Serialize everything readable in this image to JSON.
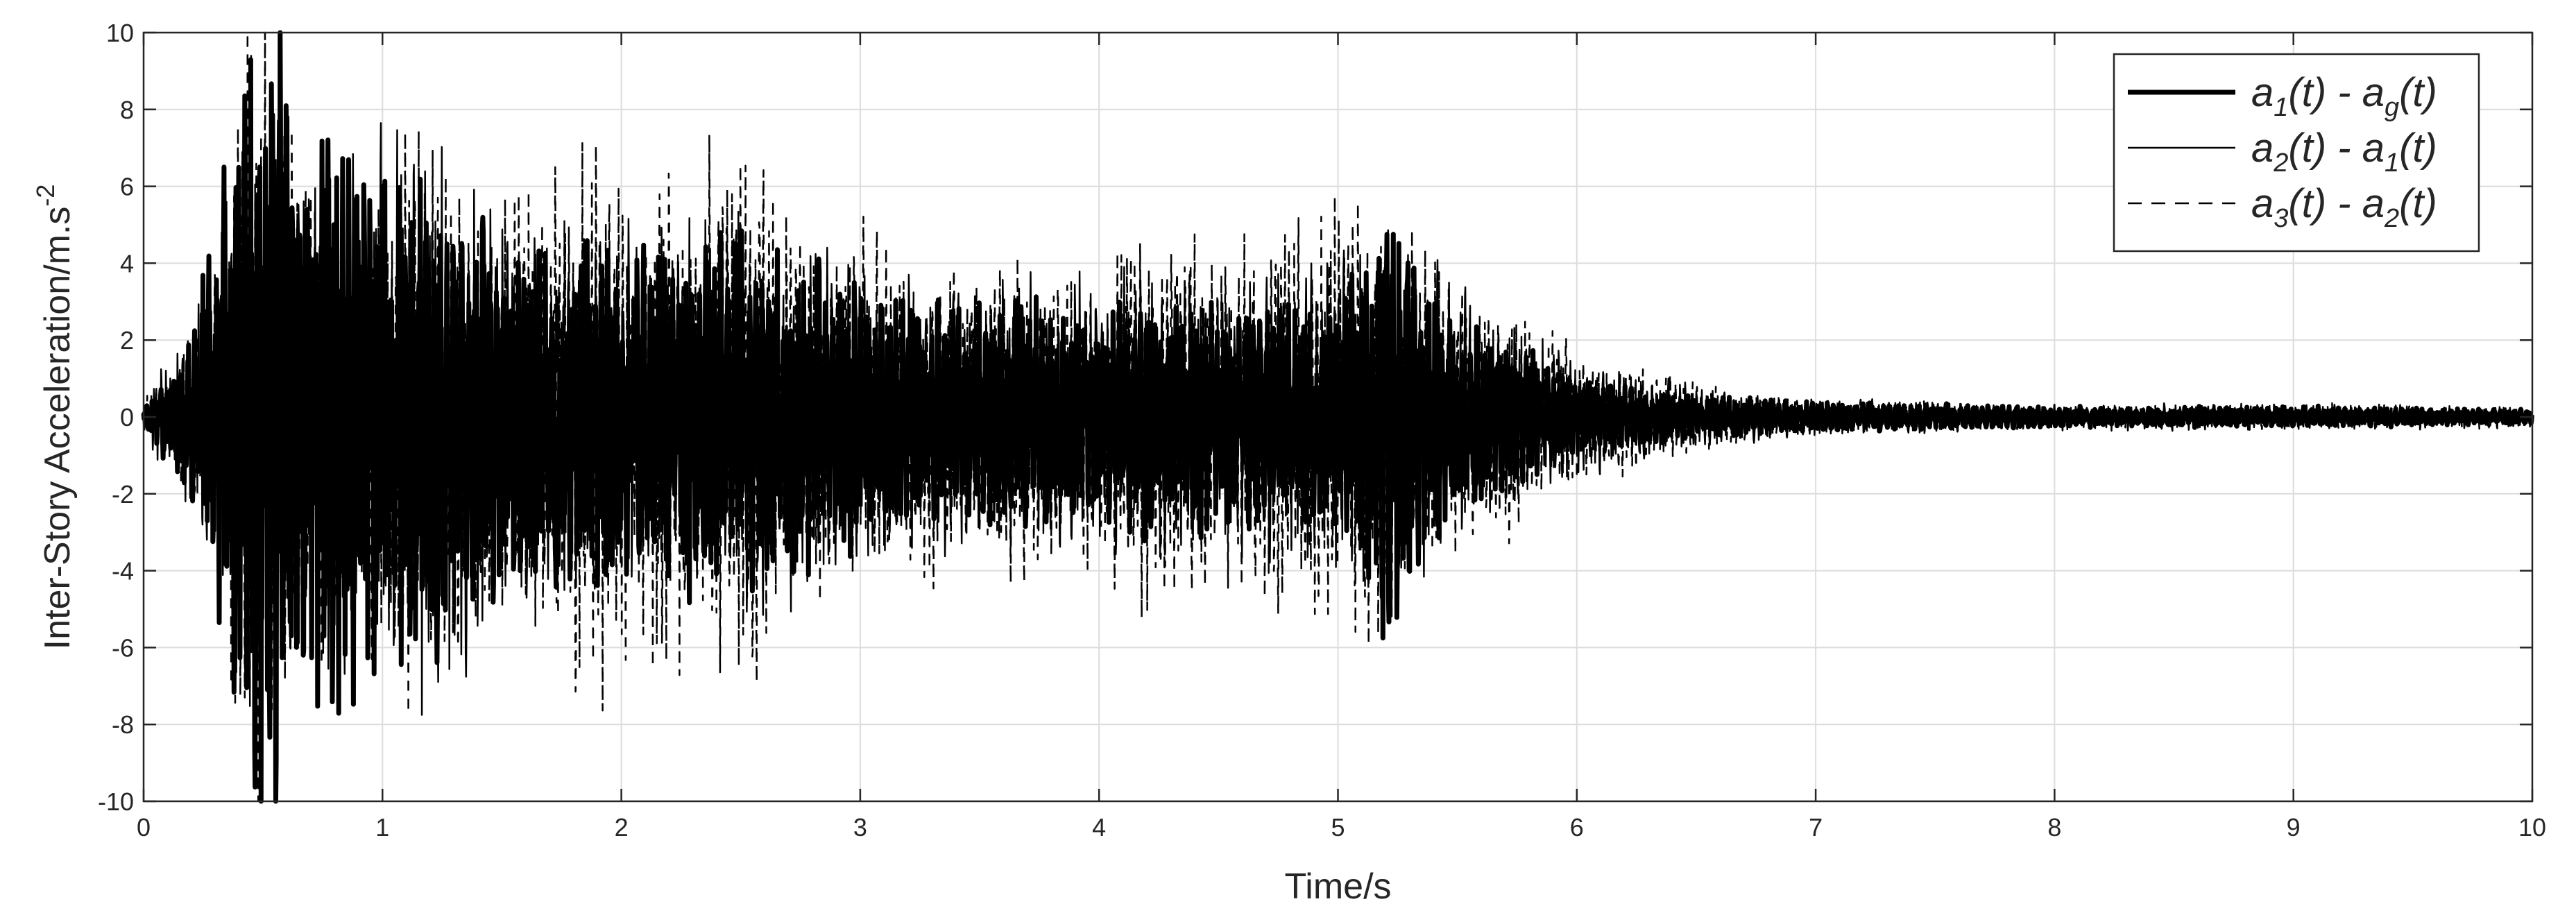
{
  "chart_data": {
    "type": "line",
    "title": "",
    "xlabel": "Time/s",
    "ylabel": {
      "main": "Inter-Story Acceleration/m.s",
      "sup": "-2"
    },
    "xlim": [
      0,
      10
    ],
    "ylim": [
      -10,
      10
    ],
    "x_ticks": [
      "0",
      "1",
      "2",
      "3",
      "4",
      "5",
      "6",
      "7",
      "8",
      "9",
      "10"
    ],
    "y_ticks": [
      "-10",
      "-8",
      "-6",
      "-4",
      "-2",
      "0",
      "2",
      "4",
      "6",
      "8",
      "10"
    ],
    "grid": true,
    "legend_position": "top-right",
    "series": [
      {
        "name": "a1(t) - ag(t)",
        "legend": [
          {
            "t": "a"
          },
          {
            "t": "1",
            "sub": true
          },
          {
            "t": "(t) - a"
          },
          {
            "t": "g",
            "sub": true
          },
          {
            "t": "(t)"
          }
        ],
        "style": "thick-solid",
        "color": "#000000",
        "envelope": [
          [
            0,
            0.3
          ],
          [
            0.2,
            1.5
          ],
          [
            0.3,
            4
          ],
          [
            0.4,
            6
          ],
          [
            0.5,
            8.9
          ],
          [
            0.55,
            8.8
          ],
          [
            0.7,
            5
          ],
          [
            0.85,
            5.8
          ],
          [
            1.0,
            5
          ],
          [
            1.2,
            4.8
          ],
          [
            1.5,
            3.5
          ],
          [
            2.0,
            3.2
          ],
          [
            2.5,
            3.5
          ],
          [
            3.0,
            2.5
          ],
          [
            3.5,
            2.2
          ],
          [
            4.0,
            2.2
          ],
          [
            4.5,
            2.2
          ],
          [
            5.0,
            2.4
          ],
          [
            5.2,
            4.7
          ],
          [
            5.4,
            2.2
          ],
          [
            5.7,
            1.5
          ],
          [
            6.0,
            0.7
          ],
          [
            6.5,
            0.4
          ],
          [
            7.0,
            0.3
          ],
          [
            8.0,
            0.2
          ],
          [
            9.0,
            0.2
          ],
          [
            10.0,
            0.15
          ]
        ]
      },
      {
        "name": "a2(t) - a1(t)",
        "legend": [
          {
            "t": "a"
          },
          {
            "t": "2",
            "sub": true
          },
          {
            "t": "(t) - a"
          },
          {
            "t": "1",
            "sub": true
          },
          {
            "t": "(t)"
          }
        ],
        "style": "thin-solid",
        "color": "#000000",
        "envelope": [
          [
            0,
            0.4
          ],
          [
            0.2,
            1.8
          ],
          [
            0.4,
            5
          ],
          [
            0.6,
            5.5
          ],
          [
            0.9,
            5
          ],
          [
            1.2,
            5.8
          ],
          [
            1.5,
            4
          ],
          [
            2.0,
            3.5
          ],
          [
            2.5,
            3.8
          ],
          [
            3.0,
            3
          ],
          [
            3.5,
            2.5
          ],
          [
            4.0,
            2.8
          ],
          [
            4.5,
            2.5
          ],
          [
            5.0,
            3
          ],
          [
            5.3,
            3.5
          ],
          [
            5.6,
            2
          ],
          [
            6.0,
            1.2
          ],
          [
            6.5,
            0.6
          ],
          [
            7.0,
            0.35
          ],
          [
            8.0,
            0.25
          ],
          [
            9.0,
            0.25
          ],
          [
            10.0,
            0.2
          ]
        ]
      },
      {
        "name": "a3(t) - a2(t)",
        "legend": [
          {
            "t": "a"
          },
          {
            "t": "3",
            "sub": true
          },
          {
            "t": "(t) - a"
          },
          {
            "t": "2",
            "sub": true
          },
          {
            "t": "(t)"
          }
        ],
        "style": "dashed",
        "color": "#000000",
        "envelope": [
          [
            0,
            0.3
          ],
          [
            0.2,
            1.5
          ],
          [
            0.3,
            3
          ],
          [
            0.45,
            8.6
          ],
          [
            0.55,
            7.5
          ],
          [
            0.7,
            4.5
          ],
          [
            0.9,
            4
          ],
          [
            1.15,
            6.2
          ],
          [
            1.4,
            4
          ],
          [
            1.9,
            5.3
          ],
          [
            2.1,
            4.5
          ],
          [
            2.5,
            5.3
          ],
          [
            2.8,
            3.5
          ],
          [
            3.0,
            3.6
          ],
          [
            3.5,
            3
          ],
          [
            4.0,
            2.8
          ],
          [
            4.2,
            4.2
          ],
          [
            4.5,
            3.2
          ],
          [
            4.9,
            3.9
          ],
          [
            5.1,
            4.4
          ],
          [
            5.4,
            3.2
          ],
          [
            5.8,
            2
          ],
          [
            6.0,
            1.3
          ],
          [
            6.5,
            0.7
          ],
          [
            7.0,
            0.35
          ],
          [
            8.0,
            0.2
          ],
          [
            9.0,
            0.25
          ],
          [
            10.0,
            0.2
          ]
        ]
      }
    ]
  }
}
